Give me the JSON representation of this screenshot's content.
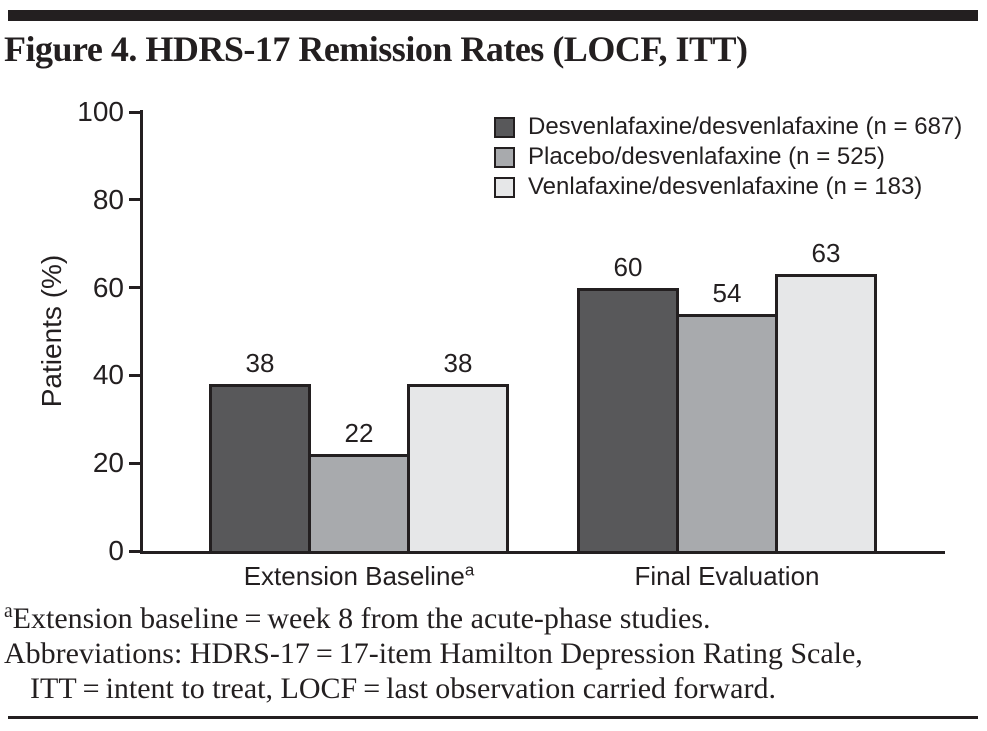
{
  "chart_data": {
    "type": "bar",
    "title": "Figure 4. HDRS-17 Remission Rates (LOCF, ITT)",
    "ylabel": "Patients (%)",
    "ylim": [
      0,
      100
    ],
    "yticks": [
      0,
      20,
      40,
      60,
      80,
      100
    ],
    "grid": false,
    "legend_position": "top-right",
    "bar_value_labels": true,
    "categories": [
      "Extension Baseline",
      "Final Evaluation"
    ],
    "category_superscripts": [
      "a",
      ""
    ],
    "series": [
      {
        "name": "Desvenlafaxine/desvenlafaxine (n = 687)",
        "color": "#58585a",
        "values": [
          38,
          60
        ]
      },
      {
        "name": "Placebo/desvenlafaxine (n = 525)",
        "color": "#a8aaad",
        "values": [
          22,
          54
        ]
      },
      {
        "name": "Venlafaxine/desvenlafaxine (n = 183)",
        "color": "#e6e7e8",
        "values": [
          38,
          63
        ]
      }
    ]
  },
  "footnotes": {
    "line1_superscript": "a",
    "line1_text": "Extension baseline = week 8 from the acute-phase studies.",
    "line2_text": "Abbreviations: HDRS-17 = 17-item Hamilton Depression Rating Scale,",
    "line3_text": "ITT = intent to treat, LOCF = last observation carried forward."
  },
  "colors": {
    "text": "#231f20",
    "axis": "#231f20",
    "rule": "#231f20",
    "background": "#ffffff",
    "bar_dark": "#58585a",
    "bar_medium": "#a8aaad",
    "bar_light": "#e6e7e8"
  }
}
